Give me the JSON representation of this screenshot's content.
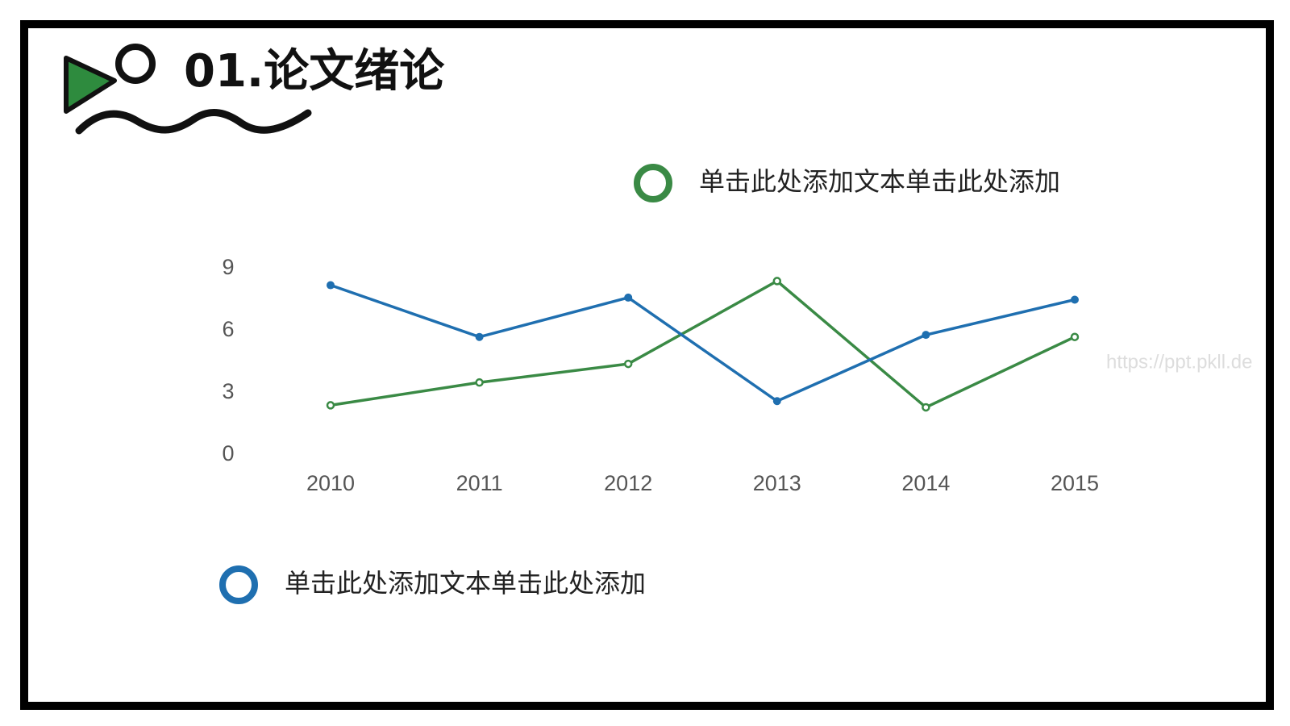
{
  "chart_data": {
    "type": "line",
    "title": "01.论文绪论",
    "categories": [
      "2010",
      "2011",
      "2012",
      "2013",
      "2014",
      "2015"
    ],
    "series": [
      {
        "name": "单击此处添加文本单击此处添加",
        "color": "#3a8a45",
        "marker": "hollow",
        "values": [
          2.4,
          3.5,
          4.4,
          8.4,
          2.3,
          5.7
        ]
      },
      {
        "name": "单击此处添加文本单击此处添加",
        "color": "#1f6fb0",
        "marker": "filled",
        "values": [
          8.2,
          5.7,
          7.6,
          2.6,
          5.8,
          7.5
        ]
      }
    ],
    "ylim": [
      0,
      9
    ],
    "yticks": [
      0,
      3,
      6,
      9
    ],
    "grid": false
  },
  "watermark": "https://ppt.pkll.de"
}
